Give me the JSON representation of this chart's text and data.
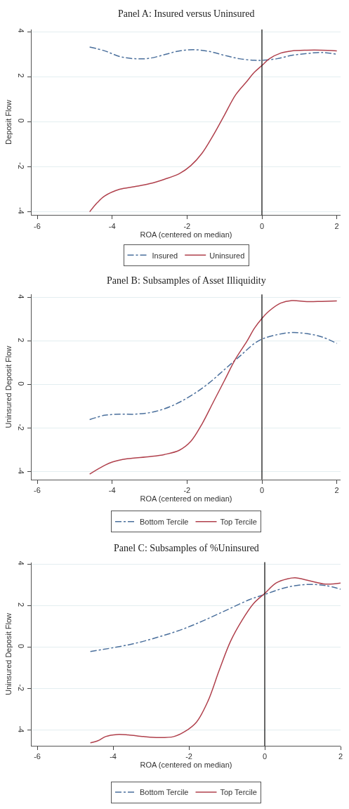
{
  "chart_data": [
    {
      "type": "line",
      "title": "Panel A: Insured versus Uninsured",
      "xlabel": "ROA (centered on median)",
      "ylabel": "Deposit Flow",
      "xlim": [
        -6.15,
        2.1
      ],
      "xticks": [
        -6,
        -4,
        -2,
        0,
        2
      ],
      "ylim": [
        -4.15,
        4.1
      ],
      "yticks": [
        -4,
        -2,
        0,
        2,
        4
      ],
      "grid": "y",
      "legend": "bottom",
      "ref_lines": [
        {
          "axis": "x",
          "value": 0,
          "color": "#000000"
        }
      ],
      "series": [
        {
          "name": "Insured",
          "color": "#4a6f9c",
          "line_style": "dashdot",
          "x": [
            -4.6,
            -4.2,
            -3.8,
            -3.4,
            -3.0,
            -2.6,
            -2.2,
            -1.8,
            -1.4,
            -1.0,
            -0.6,
            -0.2,
            0,
            0.4,
            0.8,
            1.2,
            1.6,
            2.0
          ],
          "values": [
            3.32,
            3.15,
            2.9,
            2.8,
            2.82,
            2.98,
            3.15,
            3.2,
            3.12,
            2.95,
            2.8,
            2.73,
            2.73,
            2.8,
            2.95,
            3.03,
            3.08,
            3.0
          ]
        },
        {
          "name": "Uninsured",
          "color": "#b0404c",
          "line_style": "solid",
          "x": [
            -4.6,
            -4.4,
            -4.2,
            -3.8,
            -3.4,
            -3.0,
            -2.6,
            -2.2,
            -1.9,
            -1.6,
            -1.3,
            -1.0,
            -0.7,
            -0.4,
            -0.2,
            0,
            0.2,
            0.5,
            0.8,
            1.2,
            1.6,
            2.0
          ],
          "values": [
            -4.0,
            -3.6,
            -3.3,
            -3.0,
            -2.88,
            -2.75,
            -2.55,
            -2.3,
            -1.95,
            -1.4,
            -0.6,
            0.3,
            1.2,
            1.8,
            2.2,
            2.5,
            2.8,
            3.05,
            3.15,
            3.18,
            3.18,
            3.15
          ]
        }
      ]
    },
    {
      "type": "line",
      "title": "Panel B: Subsamples of Asset Illiquidity",
      "xlabel": "ROA (centered on median)",
      "ylabel": "Uninsured Deposit Flow",
      "xlim": [
        -6.15,
        2.1
      ],
      "xticks": [
        -6,
        -4,
        -2,
        0,
        2
      ],
      "ylim": [
        -4.35,
        4.15
      ],
      "yticks": [
        -4,
        -2,
        0,
        2,
        4
      ],
      "grid": "y",
      "legend": "bottom",
      "ref_lines": [
        {
          "axis": "x",
          "value": 0,
          "color": "#000000"
        }
      ],
      "series": [
        {
          "name": "Bottom Tercile",
          "color": "#4a6f9c",
          "line_style": "dashdot",
          "x": [
            -4.6,
            -4.2,
            -3.8,
            -3.4,
            -3.0,
            -2.6,
            -2.2,
            -1.8,
            -1.4,
            -1.0,
            -0.6,
            -0.2,
            0,
            0.4,
            0.8,
            1.2,
            1.6,
            2.0
          ],
          "values": [
            -1.6,
            -1.4,
            -1.35,
            -1.35,
            -1.28,
            -1.1,
            -0.8,
            -0.4,
            0.1,
            0.7,
            1.3,
            1.9,
            2.1,
            2.3,
            2.4,
            2.35,
            2.2,
            1.9
          ]
        },
        {
          "name": "Top Tercile",
          "color": "#b0404c",
          "line_style": "solid",
          "x": [
            -4.6,
            -4.2,
            -4.0,
            -3.6,
            -3.0,
            -2.6,
            -2.2,
            -1.9,
            -1.6,
            -1.3,
            -1.0,
            -0.7,
            -0.4,
            -0.2,
            0,
            0.2,
            0.5,
            0.8,
            1.2,
            1.6,
            2.0
          ],
          "values": [
            -4.1,
            -3.7,
            -3.55,
            -3.4,
            -3.3,
            -3.2,
            -3.0,
            -2.6,
            -1.8,
            -0.8,
            0.2,
            1.2,
            2.0,
            2.6,
            3.05,
            3.4,
            3.75,
            3.87,
            3.82,
            3.83,
            3.85
          ]
        }
      ]
    },
    {
      "type": "line",
      "title": "Panel C: Subsamples of %Uninsured",
      "xlabel": "ROA (centered on median)",
      "ylabel": "Uninsured Deposit Flow",
      "xlim": [
        -6.15,
        2.0
      ],
      "xticks": [
        -6,
        -4,
        -2,
        0,
        2
      ],
      "ylim": [
        -4.75,
        4.1
      ],
      "yticks": [
        -4,
        -2,
        0,
        2,
        4
      ],
      "grid": "y",
      "legend": "bottom",
      "ref_lines": [
        {
          "axis": "x",
          "value": 0,
          "color": "#000000"
        }
      ],
      "series": [
        {
          "name": "Bottom Tercile",
          "color": "#4a6f9c",
          "line_style": "dashdot",
          "x": [
            -4.6,
            -4.0,
            -3.4,
            -2.8,
            -2.2,
            -1.6,
            -1.0,
            -0.4,
            0,
            0.4,
            0.8,
            1.2,
            1.6,
            2.0
          ],
          "values": [
            -0.2,
            -0.02,
            0.2,
            0.5,
            0.85,
            1.3,
            1.8,
            2.3,
            2.55,
            2.8,
            2.97,
            3.03,
            2.98,
            2.8
          ]
        },
        {
          "name": "Top Tercile",
          "color": "#b0404c",
          "line_style": "solid",
          "x": [
            -4.6,
            -4.4,
            -4.2,
            -3.9,
            -3.6,
            -3.2,
            -2.8,
            -2.4,
            -2.1,
            -1.8,
            -1.5,
            -1.2,
            -0.9,
            -0.6,
            -0.3,
            0,
            0.3,
            0.6,
            0.8,
            1.2,
            1.6,
            2.0
          ],
          "values": [
            -4.6,
            -4.5,
            -4.3,
            -4.2,
            -4.22,
            -4.3,
            -4.35,
            -4.3,
            -4.05,
            -3.6,
            -2.6,
            -1.1,
            0.3,
            1.3,
            2.1,
            2.6,
            3.1,
            3.3,
            3.35,
            3.2,
            3.05,
            3.1
          ]
        }
      ]
    }
  ]
}
